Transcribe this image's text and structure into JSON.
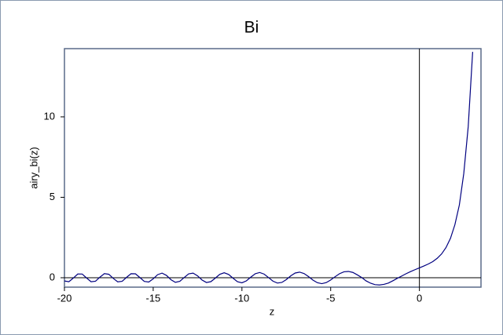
{
  "chart_data": {
    "type": "line",
    "title": "Bi",
    "xlabel": "z",
    "ylabel": "airy_bi(z)",
    "color": "#000080",
    "x": [
      -20,
      -19.75,
      -19.5,
      -19.25,
      -19,
      -18.75,
      -18.5,
      -18.25,
      -18,
      -17.75,
      -17.5,
      -17.25,
      -17,
      -16.75,
      -16.5,
      -16.25,
      -16,
      -15.75,
      -15.5,
      -15.25,
      -15,
      -14.75,
      -14.5,
      -14.25,
      -14,
      -13.75,
      -13.5,
      -13.25,
      -13,
      -12.75,
      -12.5,
      -12.25,
      -12,
      -11.75,
      -11.5,
      -11.25,
      -11,
      -10.75,
      -10.5,
      -10.25,
      -10,
      -9.75,
      -9.5,
      -9.25,
      -9,
      -8.75,
      -8.5,
      -8.25,
      -8,
      -7.75,
      -7.5,
      -7.25,
      -7,
      -6.75,
      -6.5,
      -6.25,
      -6,
      -5.75,
      -5.5,
      -5.25,
      -5,
      -4.75,
      -4.5,
      -4.25,
      -4,
      -3.75,
      -3.5,
      -3.25,
      -3,
      -2.75,
      -2.5,
      -2.25,
      -2,
      -1.75,
      -1.5,
      -1.25,
      -1,
      -0.75,
      -0.5,
      -0.25,
      0,
      0.25,
      0.5,
      0.75,
      1,
      1.25,
      1.5,
      1.75,
      2,
      2.25,
      2.5,
      2.75,
      3
    ],
    "values": [
      -0.2,
      -0.247,
      -0.019,
      0.231,
      0.23,
      -0.018,
      -0.248,
      -0.218,
      0.038,
      0.256,
      0.215,
      -0.041,
      -0.257,
      -0.224,
      0.024,
      0.25,
      0.243,
      0.012,
      -0.23,
      -0.268,
      -0.069,
      0.19,
      0.287,
      0.144,
      -0.12,
      -0.286,
      -0.224,
      0.014,
      0.242,
      0.287,
      0.118,
      -0.139,
      -0.296,
      -0.244,
      -0.024,
      0.213,
      0.31,
      0.205,
      -0.03,
      -0.247,
      -0.315,
      -0.196,
      0.037,
      0.25,
      0.325,
      0.226,
      0.009,
      -0.214,
      -0.331,
      -0.29,
      -0.114,
      0.114,
      0.293,
      0.349,
      0.262,
      0.073,
      -0.145,
      -0.31,
      -0.368,
      -0.303,
      -0.138,
      0.064,
      0.251,
      0.37,
      0.392,
      0.33,
      0.18,
      0.01,
      -0.198,
      -0.34,
      -0.43,
      -0.45,
      -0.412,
      -0.33,
      -0.192,
      -0.04,
      0.104,
      0.25,
      0.381,
      0.5,
      0.615,
      0.73,
      0.854,
      1.0,
      1.207,
      1.48,
      1.879,
      2.45,
      3.298,
      4.52,
      6.482,
      9.39,
      14.04
    ],
    "xlim": [
      -20,
      3.47
    ],
    "ylim": [
      -0.585,
      14.24
    ],
    "xticks": [
      -20,
      -15,
      -10,
      -5,
      0
    ],
    "yticks": [
      0,
      5,
      10
    ]
  }
}
